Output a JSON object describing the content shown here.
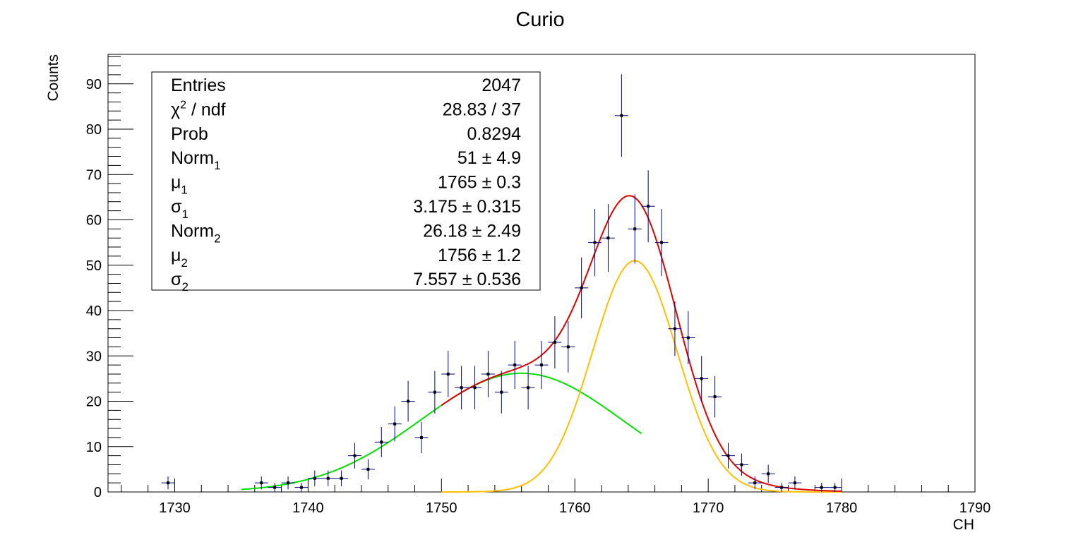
{
  "chart_data": {
    "type": "scatter",
    "title": "Curio",
    "xlabel": "CH",
    "ylabel": "Counts",
    "xlim": [
      1725,
      1790
    ],
    "ylim": [
      0,
      96.5
    ],
    "xticks": [
      "1730",
      "1740",
      "1750",
      "1760",
      "1770",
      "1780",
      "1790"
    ],
    "yticks": [
      "0",
      "10",
      "20",
      "30",
      "40",
      "50",
      "60",
      "70",
      "80",
      "90"
    ],
    "grid": false,
    "legend": "top-left stats box",
    "colors": {
      "points": "#000000",
      "errorbars": "#000080",
      "total_fit": "#e00000",
      "gauss1": "#ffbf00",
      "gauss2": "#00e000"
    },
    "series": [
      {
        "kind": "histogram-points",
        "x": [
          1729.5,
          1736.5,
          1737.5,
          1738.5,
          1739.5,
          1740.5,
          1741.5,
          1742.5,
          1743.5,
          1744.5,
          1745.5,
          1746.5,
          1747.5,
          1748.5,
          1749.5,
          1750.5,
          1751.5,
          1752.5,
          1753.5,
          1754.5,
          1755.5,
          1756.5,
          1757.5,
          1758.5,
          1759.5,
          1760.5,
          1761.5,
          1762.5,
          1763.5,
          1764.5,
          1765.5,
          1766.5,
          1767.5,
          1768.5,
          1769.5,
          1770.5,
          1771.5,
          1772.5,
          1773.5,
          1774.5,
          1775.5,
          1776.5,
          1777.5,
          1778.5,
          1779.5
        ],
        "y": [
          2,
          2,
          1,
          2,
          1,
          3,
          3,
          3,
          8,
          5,
          11,
          15,
          20,
          12,
          22,
          26,
          23,
          23,
          26,
          22,
          28,
          23,
          28,
          33,
          32,
          45,
          55,
          56,
          83,
          58,
          63,
          55,
          36,
          34,
          25,
          21,
          8,
          6,
          2,
          4,
          1,
          2,
          0,
          1,
          1
        ]
      }
    ],
    "fit_curves": [
      {
        "kind": "total",
        "range": [
          1750,
          1780
        ]
      },
      {
        "kind": "gauss1",
        "range": [
          1750,
          1780
        ]
      },
      {
        "kind": "gauss2",
        "range": [
          1735,
          1765
        ]
      }
    ],
    "stats_box": {
      "rows": [
        {
          "label": "Entries",
          "sub": "",
          "sup": "",
          "value": "2047"
        },
        {
          "label": "χ",
          "sub": "",
          "sup": "2",
          "rest": " / ndf",
          "value": "28.83 / 37"
        },
        {
          "label": "Prob",
          "sub": "",
          "sup": "",
          "value": "0.8294"
        },
        {
          "label": "Norm",
          "sub": "1",
          "sup": "",
          "value": "51 ± 4.9"
        },
        {
          "label": "μ",
          "sub": "1",
          "sup": "",
          "value": "1765 ± 0.3"
        },
        {
          "label": "σ",
          "sub": "1",
          "sup": "",
          "value": "3.175 ± 0.315"
        },
        {
          "label": "Norm",
          "sub": "2",
          "sup": "",
          "value": "26.18 ± 2.49"
        },
        {
          "label": "μ",
          "sub": "2",
          "sup": "",
          "value": "1756 ± 1.2"
        },
        {
          "label": "σ",
          "sub": "2",
          "sup": "",
          "value": "7.557 ± 0.536"
        }
      ]
    },
    "fit_params": {
      "norm1": 51,
      "mu1": 1765,
      "sigma1": 3.175,
      "norm2": 26.18,
      "mu2": 1756,
      "sigma2": 7.557
    }
  }
}
